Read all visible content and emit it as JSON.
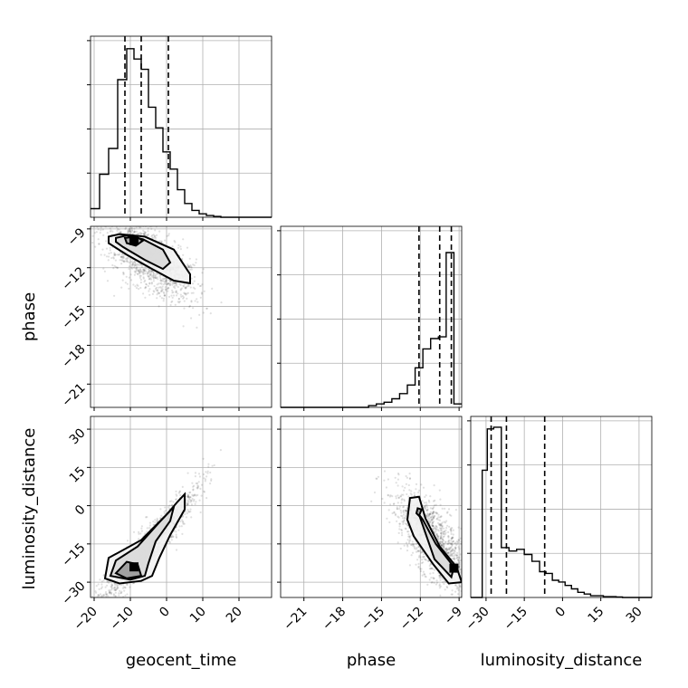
{
  "chart_data": {
    "type": "corner",
    "parameters": [
      "geocent_time",
      "phase",
      "luminosity_distance"
    ],
    "ticks": {
      "geocent_time": [
        -20,
        -10,
        0,
        10,
        20
      ],
      "phase": [
        -21,
        -18,
        -15,
        -12,
        -9
      ],
      "luminosity_distance": [
        -30,
        -15,
        0,
        15,
        30
      ]
    },
    "tick_labels": {
      "geocent_time": [
        "−20",
        "−10",
        "0",
        "10",
        "20"
      ],
      "phase": [
        "−21",
        "−18",
        "−15",
        "−12",
        "−9"
      ],
      "luminosity_distance": [
        "−30",
        "−15",
        "0",
        "15",
        "30"
      ]
    },
    "ranges": {
      "geocent_time": [
        -21,
        29
      ],
      "phase": [
        -22.8,
        -8.8
      ],
      "luminosity_distance": [
        -36,
        35
      ]
    },
    "quantiles": {
      "geocent_time": [
        -11.5,
        -7,
        0.5
      ],
      "phase": [
        -12.1,
        -10.5,
        -9.6
      ],
      "luminosity_distance": [
        -28,
        -22,
        -7
      ]
    },
    "histograms": {
      "geocent_time": {
        "edges": [
          -21,
          -18.5,
          -16,
          -13.5,
          -11,
          -9,
          -7,
          -5,
          -3,
          -1,
          1,
          3,
          5,
          7,
          9,
          11,
          13,
          15,
          17,
          19,
          21,
          23,
          25,
          27,
          29
        ],
        "counts": [
          0.05,
          0.25,
          0.4,
          0.8,
          0.98,
          0.92,
          0.86,
          0.64,
          0.52,
          0.38,
          0.28,
          0.16,
          0.08,
          0.04,
          0.02,
          0.01,
          0.005,
          0,
          0,
          0,
          0,
          0,
          0,
          0
        ]
      },
      "phase": {
        "edges": [
          -22.8,
          -16,
          -15.4,
          -14.8,
          -14.2,
          -13.6,
          -13.0,
          -12.4,
          -11.8,
          -11.2,
          -10.6,
          -10.0,
          -9.4,
          -8.8
        ],
        "counts": [
          0,
          0.01,
          0.02,
          0.03,
          0.05,
          0.08,
          0.13,
          0.23,
          0.34,
          0.4,
          0.41,
          0.9,
          0.02
        ]
      },
      "luminosity_distance": {
        "edges": [
          -36,
          -31.5,
          -29.5,
          -27,
          -24,
          -21,
          -18,
          -15,
          -12,
          -9,
          -6.5,
          -4,
          -1.5,
          1,
          3.5,
          6,
          8.5,
          11,
          13.5,
          16,
          18.5,
          21,
          23.5,
          26,
          28.5,
          35
        ],
        "counts": [
          0,
          0.74,
          0.98,
          0.99,
          0.29,
          0.27,
          0.28,
          0.25,
          0.21,
          0.15,
          0.14,
          0.1,
          0.09,
          0.07,
          0.05,
          0.03,
          0.02,
          0.01,
          0.01,
          0.005,
          0.005,
          0.003,
          0,
          0,
          0
        ]
      }
    },
    "joint": {
      "phase_vs_geocent_time": {
        "x_param": "geocent_time",
        "y_param": "phase",
        "contours": [
          [
            [
              -16,
              -9.6
            ],
            [
              -13,
              -9.4
            ],
            [
              -6,
              -9.6
            ],
            [
              2,
              -10.6
            ],
            [
              6.5,
              -12.5
            ],
            [
              6.5,
              -13.2
            ],
            [
              2,
              -13
            ],
            [
              -4,
              -12.1
            ],
            [
              -11,
              -11
            ],
            [
              -16,
              -10.1
            ]
          ],
          [
            [
              -14,
              -9.7
            ],
            [
              -11,
              -9.5
            ],
            [
              -6.5,
              -9.8
            ],
            [
              -1,
              -10.6
            ],
            [
              1,
              -11.6
            ],
            [
              -1,
              -12.1
            ],
            [
              -6,
              -11.4
            ],
            [
              -12,
              -10.4
            ],
            [
              -14,
              -10
            ]
          ],
          [
            [
              -11.5,
              -9.7
            ],
            [
              -8.5,
              -9.6
            ],
            [
              -6.5,
              -9.9
            ],
            [
              -8.5,
              -10.3
            ],
            [
              -11,
              -10.1
            ]
          ]
        ],
        "peak": [
          -9,
          -9.9
        ]
      },
      "luminosity_distance_vs_geocent_time": {
        "x_param": "geocent_time",
        "y_param": "luminosity_distance",
        "contours": [
          [
            [
              -17,
              -28.5
            ],
            [
              -16,
              -20.5
            ],
            [
              -7,
              -13.5
            ],
            [
              0,
              -3.5
            ],
            [
              3,
              1.5
            ],
            [
              5,
              4.5
            ],
            [
              5,
              -1.5
            ],
            [
              1,
              -11.5
            ],
            [
              -2,
              -20.5
            ],
            [
              -4,
              -27.5
            ],
            [
              -7,
              -29.5
            ],
            [
              -13,
              -30.5
            ]
          ],
          [
            [
              -15.5,
              -27.5
            ],
            [
              -14,
              -21.5
            ],
            [
              -8,
              -16
            ],
            [
              -2,
              -6.5
            ],
            [
              2,
              -0.5
            ],
            [
              1,
              -6
            ],
            [
              -3,
              -14
            ],
            [
              -5,
              -22.5
            ],
            [
              -6,
              -27.5
            ],
            [
              -10,
              -29
            ]
          ],
          [
            [
              -14,
              -26.5
            ],
            [
              -11,
              -22
            ],
            [
              -8,
              -23
            ],
            [
              -7,
              -27.5
            ],
            [
              -11,
              -28.5
            ]
          ]
        ],
        "peak": [
          -9,
          -24
        ]
      },
      "luminosity_distance_vs_phase": {
        "x_param": "phase",
        "y_param": "luminosity_distance",
        "contours": [
          [
            [
              -13,
              -5.5
            ],
            [
              -12.8,
              3
            ],
            [
              -12.1,
              3.5
            ],
            [
              -11.6,
              -5
            ],
            [
              -10.5,
              -16
            ],
            [
              -9.2,
              -24
            ],
            [
              -8.8,
              -30
            ],
            [
              -9.8,
              -30.5
            ],
            [
              -11,
              -23
            ],
            [
              -12.5,
              -12
            ]
          ],
          [
            [
              -12.1,
              -3.5
            ],
            [
              -11.8,
              -5.5
            ],
            [
              -10.8,
              -15
            ],
            [
              -9.4,
              -24
            ],
            [
              -9.6,
              -28
            ],
            [
              -10.9,
              -21
            ]
          ],
          [
            [
              -12.2,
              -1
            ],
            [
              -11.9,
              -1.5
            ],
            [
              -12.1,
              -4
            ],
            [
              -12.3,
              -3
            ]
          ]
        ],
        "peak": [
          -9.4,
          -24.5
        ]
      }
    }
  }
}
